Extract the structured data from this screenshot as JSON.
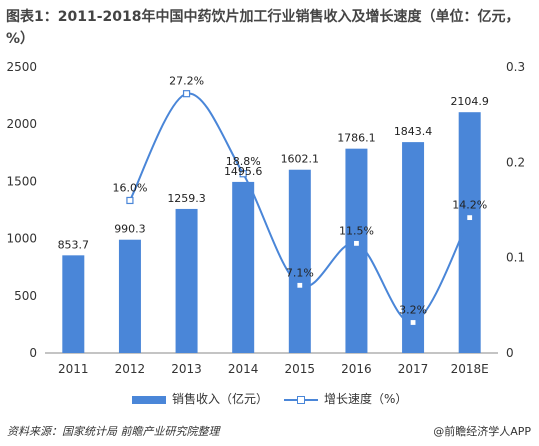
{
  "title": "图表1：2011-2018年中国中药饮片加工行业销售收入及增长速度（单位：亿元，%）",
  "source": "资料来源：国家统计局  前瞻产业研究院整理",
  "brand": "@前瞻经济学人APP",
  "colors": {
    "bar": "#4a86d8",
    "line": "#4a86d8"
  },
  "chart_data": {
    "type": "bar",
    "categories": [
      "2011",
      "2012",
      "2013",
      "2014",
      "2015",
      "2016",
      "2017",
      "2018E"
    ],
    "series": [
      {
        "name": "销售收入（亿元）",
        "type": "bar",
        "axis": "left",
        "values": [
          853.7,
          990.3,
          1259.3,
          1495.6,
          1602.1,
          1786.1,
          1843.4,
          2104.9
        ],
        "labels": [
          "853.7",
          "990.3",
          "1259.3",
          "1495.6",
          "1602.1",
          "1786.1",
          "1843.4",
          "2104.9"
        ]
      },
      {
        "name": "增长速度（%）",
        "type": "line",
        "axis": "right",
        "smooth": true,
        "values": [
          null,
          16.0,
          27.2,
          18.8,
          7.1,
          11.5,
          3.2,
          14.2
        ],
        "labels": [
          "",
          "16.0%",
          "27.2%",
          "18.8%",
          "7.1%",
          "11.5%",
          "3.2%",
          "14.2%"
        ]
      }
    ],
    "y_left": {
      "min": 0,
      "max": 2500,
      "ticks": [
        "0",
        "500",
        "1000",
        "1500",
        "2000",
        "2500"
      ]
    },
    "y_right": {
      "min": 0,
      "max": 0.3,
      "ticks": [
        "0",
        "0.1",
        "0.2",
        "0.3"
      ]
    },
    "grid": false,
    "legend": "bottom"
  }
}
